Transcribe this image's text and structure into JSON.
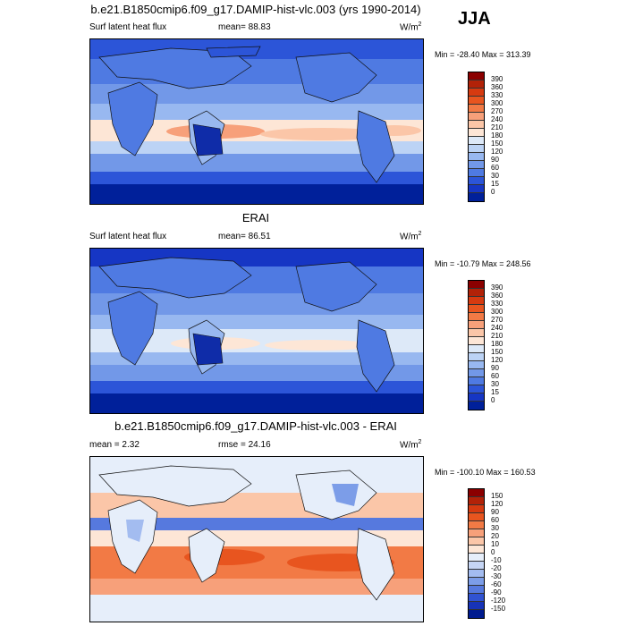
{
  "season": "JJA",
  "panels": [
    {
      "title": "b.e21.B1850cmip6.f09_g17.DAMIP-hist-vlc.003 (yrs 1990-2014)",
      "left_label": "Surf latent heat flux",
      "center_label": "mean=  88.83",
      "units": "W/m",
      "units_sup": "2",
      "minmax": "Min = -28.40 Max = 313.39",
      "colorbar_ticks": [
        "390",
        "360",
        "330",
        "300",
        "270",
        "240",
        "210",
        "180",
        "150",
        "120",
        "90",
        "60",
        "30",
        "15",
        "0"
      ],
      "colorbar_colors": [
        "#8b0000",
        "#b22208",
        "#d63a10",
        "#e8551f",
        "#f27a45",
        "#f7a07a",
        "#fbc6a8",
        "#fde6d6",
        "#dde9f8",
        "#bcd3f5",
        "#98b8f0",
        "#7298e8",
        "#4f7ae2",
        "#2c55d8",
        "#1636c4",
        "#00209a"
      ]
    },
    {
      "title": "ERAI",
      "left_label": "Surf latent heat flux",
      "center_label": "mean=  86.51",
      "units": "W/m",
      "units_sup": "2",
      "minmax": "Min = -10.79 Max = 248.56",
      "colorbar_ticks": [
        "390",
        "360",
        "330",
        "300",
        "270",
        "240",
        "210",
        "180",
        "150",
        "120",
        "90",
        "60",
        "30",
        "15",
        "0"
      ],
      "colorbar_colors": [
        "#8b0000",
        "#b22208",
        "#d63a10",
        "#e8551f",
        "#f27a45",
        "#f7a07a",
        "#fbc6a8",
        "#fde6d6",
        "#dde9f8",
        "#bcd3f5",
        "#98b8f0",
        "#7298e8",
        "#4f7ae2",
        "#2c55d8",
        "#1636c4",
        "#00209a"
      ]
    },
    {
      "title": "b.e21.B1850cmip6.f09_g17.DAMIP-hist-vlc.003 - ERAI",
      "left_label": "mean =   2.32",
      "center_label": "rmse =  24.16",
      "units": "W/m",
      "units_sup": "2",
      "minmax": "Min = -100.10 Max = 160.53",
      "colorbar_ticks": [
        "150",
        "120",
        "90",
        "60",
        "30",
        "20",
        "10",
        "0",
        "-10",
        "-20",
        "-30",
        "-60",
        "-90",
        "-120",
        "-150"
      ],
      "colorbar_colors": [
        "#8b0000",
        "#b22208",
        "#d63a10",
        "#e8551f",
        "#f27a45",
        "#f7a07a",
        "#fbc6a8",
        "#fde6d6",
        "#e6eefa",
        "#c6d6f5",
        "#a3bcf0",
        "#7c9de8",
        "#5679de",
        "#3153d2",
        "#1733b8",
        "#001b8f"
      ]
    }
  ]
}
